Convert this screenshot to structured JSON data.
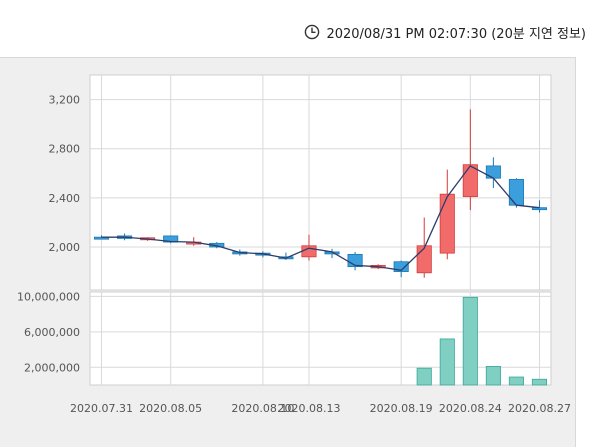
{
  "header": {
    "timestamp": "2020/08/31 PM 02:07:30 (20분 지연 정보)",
    "icon": "clock-icon"
  },
  "colors": {
    "up": "#f26b6b",
    "up_border": "#d33b3b",
    "down": "#3a9fdc",
    "down_border": "#1b78b4",
    "volume": "#7fd0c2",
    "volume_border": "#3aa898",
    "line": "#2c3e6b",
    "grid": "#d9d9d9"
  },
  "chart_data": [
    {
      "type": "candlestick",
      "title": "",
      "ylim": [
        1650,
        3400
      ],
      "y_ticks": [
        2000,
        2400,
        2800,
        3200
      ],
      "y_tick_labels": [
        "2,000",
        "2,400",
        "2,800",
        "3,200"
      ],
      "x_tick_labels": [
        "2020.07.31",
        "2020.08.05",
        "2020.08.10",
        "2020.08.13",
        "2020.08.19",
        "2020.08.24",
        "2020.08.27"
      ],
      "x_tick_index": [
        0,
        3,
        7,
        9,
        13,
        16,
        19
      ],
      "candles": [
        {
          "open": 2080,
          "high": 2095,
          "low": 2070,
          "close": 2075,
          "line": 2080
        },
        {
          "open": 2090,
          "high": 2110,
          "low": 2055,
          "close": 2070,
          "line": 2080
        },
        {
          "open": 2060,
          "high": 2080,
          "low": 2050,
          "close": 2075,
          "line": 2065
        },
        {
          "open": 2090,
          "high": 2095,
          "low": 2030,
          "close": 2040,
          "line": 2045
        },
        {
          "open": 2040,
          "high": 2080,
          "low": 2010,
          "close": 2040,
          "line": 2040
        },
        {
          "open": 2030,
          "high": 2040,
          "low": 1990,
          "close": 2000,
          "line": 2010
        },
        {
          "open": 1960,
          "high": 1980,
          "low": 1930,
          "close": 1950,
          "line": 1955
        },
        {
          "open": 1950,
          "high": 1965,
          "low": 1915,
          "close": 1935,
          "line": 1945
        },
        {
          "open": 1920,
          "high": 1955,
          "low": 1895,
          "close": 1905,
          "line": 1910
        },
        {
          "open": 1920,
          "high": 2100,
          "low": 1890,
          "close": 2010,
          "line": 1990
        },
        {
          "open": 1960,
          "high": 1985,
          "low": 1910,
          "close": 1955,
          "line": 1960
        },
        {
          "open": 1940,
          "high": 1960,
          "low": 1810,
          "close": 1840,
          "line": 1850
        },
        {
          "open": 1830,
          "high": 1860,
          "low": 1820,
          "close": 1850,
          "line": 1840
        },
        {
          "open": 1880,
          "high": 1890,
          "low": 1755,
          "close": 1800,
          "line": 1810
        },
        {
          "open": 1790,
          "high": 2240,
          "low": 1750,
          "close": 2010,
          "line": 1990
        },
        {
          "open": 1950,
          "high": 2630,
          "low": 1900,
          "close": 2430,
          "line": 2410
        },
        {
          "open": 2410,
          "high": 3120,
          "low": 2300,
          "close": 2670,
          "line": 2660
        },
        {
          "open": 2660,
          "high": 2730,
          "low": 2480,
          "close": 2560,
          "line": 2560
        },
        {
          "open": 2550,
          "high": 2560,
          "low": 2320,
          "close": 2340,
          "line": 2340
        },
        {
          "open": 2320,
          "high": 2380,
          "low": 2280,
          "close": 2310,
          "line": 2320
        }
      ]
    },
    {
      "type": "bar",
      "title": "",
      "ylim": [
        0,
        10500000
      ],
      "y_ticks": [
        2000000,
        6000000,
        10000000
      ],
      "y_tick_labels": [
        "2,000,000",
        "6,000,000",
        "10,000,000"
      ],
      "values": [
        0,
        0,
        0,
        0,
        0,
        0,
        0,
        0,
        0,
        0,
        0,
        0,
        0,
        0,
        1900000,
        5200000,
        9900000,
        2100000,
        900000,
        650000
      ]
    }
  ]
}
